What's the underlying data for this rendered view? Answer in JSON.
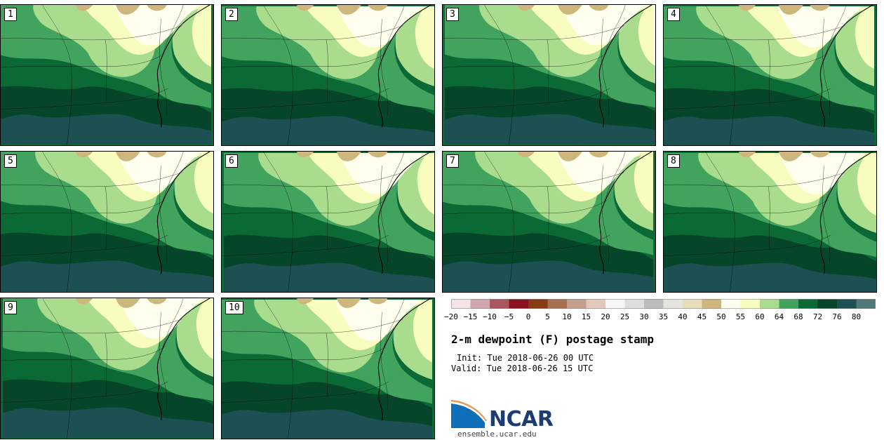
{
  "panels": [
    {
      "label": "1"
    },
    {
      "label": "2"
    },
    {
      "label": "3"
    },
    {
      "label": "4"
    },
    {
      "label": "5"
    },
    {
      "label": "6"
    },
    {
      "label": "7"
    },
    {
      "label": "8"
    },
    {
      "label": "9"
    },
    {
      "label": "10"
    }
  ],
  "colorbar": {
    "ticks": [
      "−20",
      "−15",
      "−10",
      "−5",
      "0",
      "5",
      "10",
      "15",
      "20",
      "25",
      "30",
      "35",
      "40",
      "45",
      "50",
      "55",
      "60",
      "64",
      "68",
      "72",
      "76",
      "80"
    ],
    "colors": [
      "#f4e4e6",
      "#d2a6ae",
      "#a8575f",
      "#8b1220",
      "#883a10",
      "#a66f4e",
      "#c39e8c",
      "#e0c8bb",
      "#f6f6f6",
      "#dedede",
      "#bdbdbd",
      "#e4e4dc",
      "#e7dcb8",
      "#cdb77c",
      "#fffff0",
      "#f8fdbf",
      "#a9dd8d",
      "#42a35f",
      "#0b6936",
      "#07452b",
      "#1c5052",
      "#4f7877"
    ]
  },
  "title": "2-m dewpoint (F) postage stamp",
  "init": "Init: Tue 2018-06-26 00 UTC",
  "valid": "Valid: Tue 2018-06-26 15 UTC",
  "logo": {
    "name": "ncar-logo",
    "text": "NCAR"
  },
  "site": "ensemble.ucar.edu",
  "map_colors": {
    "c45": "#cdb77c",
    "c50": "#fffff0",
    "c55": "#f8fdbf",
    "c60": "#a9dd8d",
    "c64": "#42a35f",
    "c68": "#0b6936",
    "c72": "#07452b",
    "c76": "#1c5052",
    "borders": "#000000"
  }
}
